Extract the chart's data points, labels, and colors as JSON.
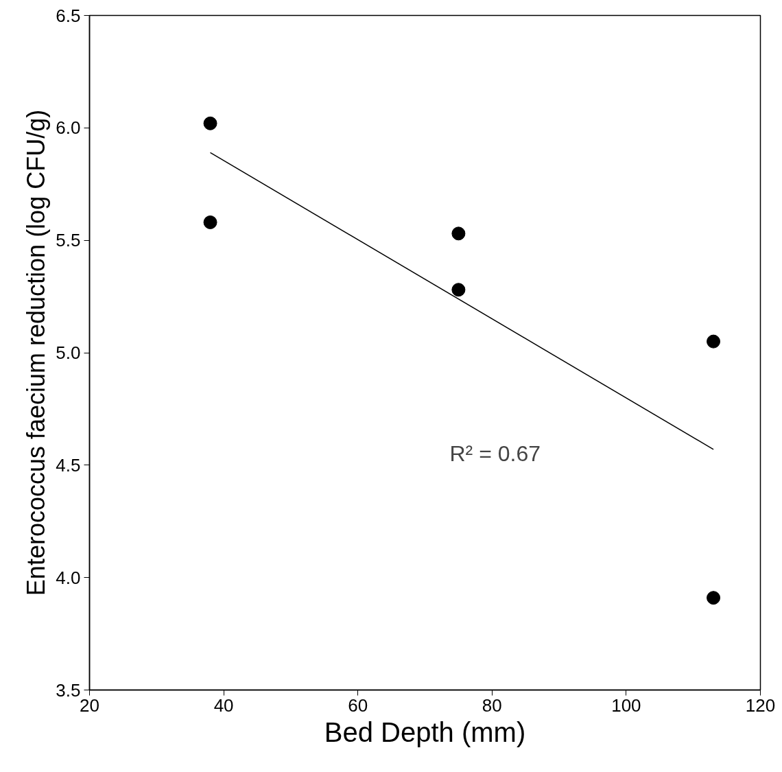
{
  "chart_data": {
    "type": "scatter",
    "xlabel": "Bed Depth (mm)",
    "ylabel": "Enterococcus faecium reduction (log CFU/g)",
    "x": [
      38,
      38,
      75,
      75,
      113,
      113
    ],
    "series": [
      {
        "color": "#000000",
        "marker": "circle",
        "values": [
          6.02,
          5.58,
          5.53,
          5.28,
          5.05,
          3.91
        ]
      },
      {
        "type": "line",
        "color": "#000000",
        "line_style": "solid",
        "marker": "none",
        "x": [
          38,
          113
        ],
        "values": [
          5.89,
          4.57
        ]
      }
    ],
    "xlim": [
      20,
      120
    ],
    "xticks": [
      20,
      40,
      60,
      80,
      100,
      120
    ],
    "ylim": [
      3.5,
      6.5
    ],
    "yticks": [
      {
        "value": 3.5,
        "label": "3.5"
      },
      {
        "value": 4,
        "label": "4.0"
      },
      {
        "value": 4.5,
        "label": "4.5"
      },
      {
        "value": 5,
        "label": "5.0"
      },
      {
        "value": 5.5,
        "label": "5.5"
      },
      {
        "value": 6,
        "label": "6.0"
      },
      {
        "value": 6.5,
        "label": "6.5"
      }
    ],
    "grid": false,
    "annotations": [
      "R² = 0.67"
    ]
  }
}
